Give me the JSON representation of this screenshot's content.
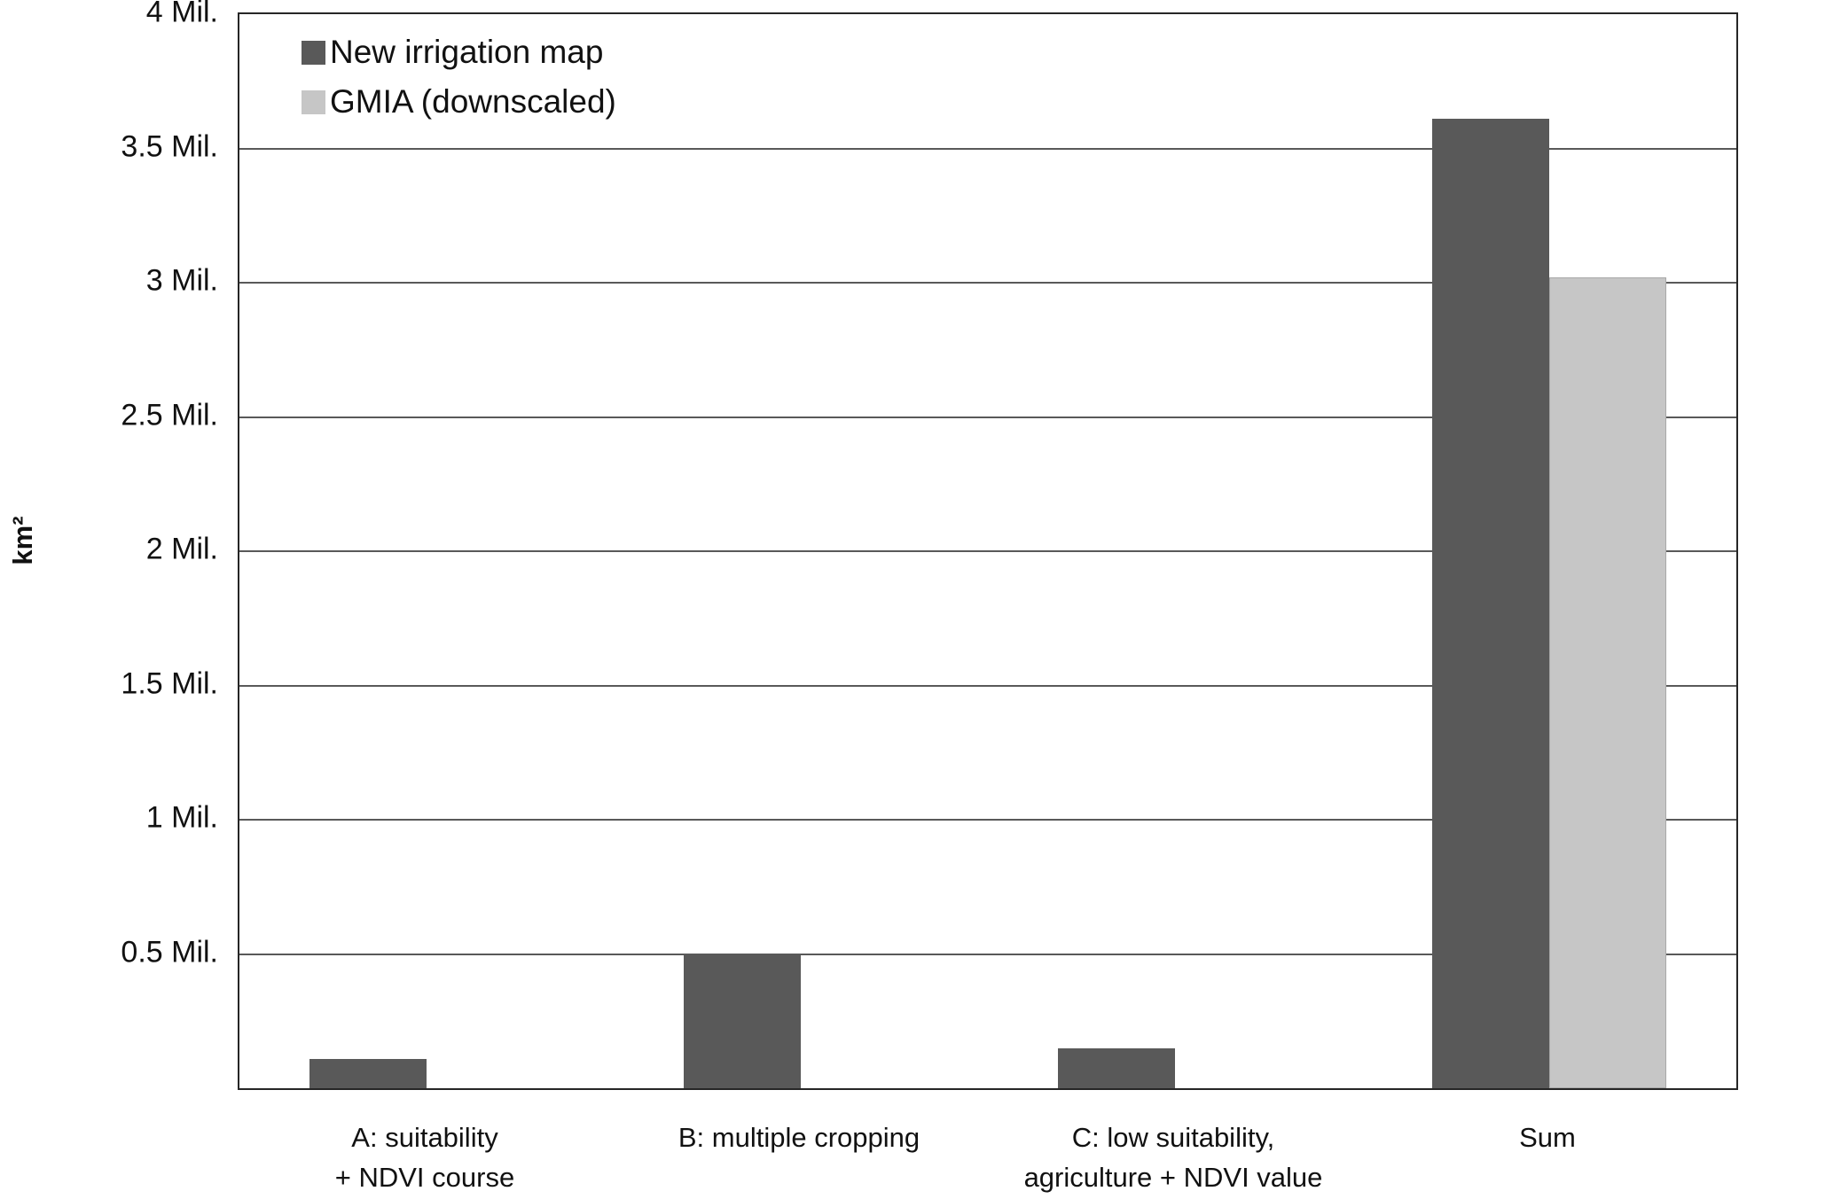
{
  "chart_data": {
    "type": "bar",
    "title": "",
    "xlabel": "",
    "ylabel": "km²",
    "unit": "Mil. km²",
    "ylim": [
      0,
      4
    ],
    "grid": true,
    "legend_position": "top-left",
    "y_ticks": [
      {
        "value": 4,
        "label": "4 Mil."
      },
      {
        "value": 3.5,
        "label": "3.5 Mil."
      },
      {
        "value": 3,
        "label": "3 Mil."
      },
      {
        "value": 2.5,
        "label": "2.5 Mil."
      },
      {
        "value": 2,
        "label": "2 Mil."
      },
      {
        "value": 1.5,
        "label": "1.5 Mil."
      },
      {
        "value": 1,
        "label": "1 Mil."
      },
      {
        "value": 0.5,
        "label": "0.5 Mil."
      }
    ],
    "categories": [
      {
        "id": "a",
        "lines": [
          "A: suitability",
          "+ NDVI course"
        ]
      },
      {
        "id": "b",
        "lines": [
          "B: multiple  cropping"
        ]
      },
      {
        "id": "c",
        "lines": [
          "C: low suitability,",
          "agriculture + NDVI value"
        ]
      },
      {
        "id": "sum",
        "lines": [
          "Sum"
        ]
      }
    ],
    "series": [
      {
        "name": "New irrigation map",
        "color": "#595959",
        "values": [
          0.11,
          0.5,
          0.15,
          3.61
        ]
      },
      {
        "name": "GMIA (downscaled)",
        "color": "#c6c6c6",
        "values": [
          0,
          0,
          0,
          3.02
        ]
      }
    ]
  }
}
